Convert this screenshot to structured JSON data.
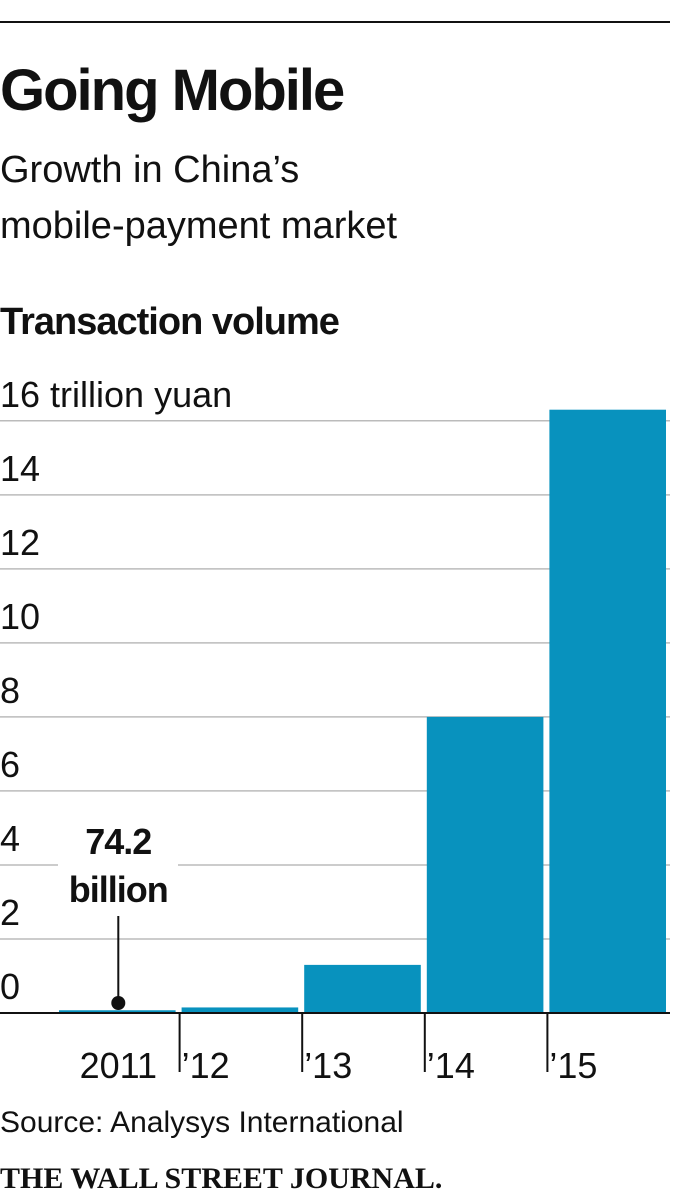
{
  "chart_data": {
    "type": "bar",
    "title": "Going Mobile",
    "subtitle": "Growth in China’s mobile-payment market",
    "y_label": "Transaction volume",
    "categories": [
      "2011",
      "’12",
      "’13",
      "’14",
      "’15"
    ],
    "values": [
      0.0742,
      0.15,
      1.3,
      8.0,
      16.3
    ],
    "value_labels": [
      "74.2 billion",
      null,
      null,
      null,
      null
    ],
    "color": "#0892be",
    "ylim": [
      0,
      16.4
    ],
    "yticks": [
      0,
      2,
      4,
      6,
      8,
      10,
      12,
      14,
      {
        "value": 16,
        "label": "16 trillion yuan"
      }
    ],
    "grid": true,
    "source": "Source: Analysys International",
    "publisher": "THE WALL STREET JOURNAL."
  }
}
